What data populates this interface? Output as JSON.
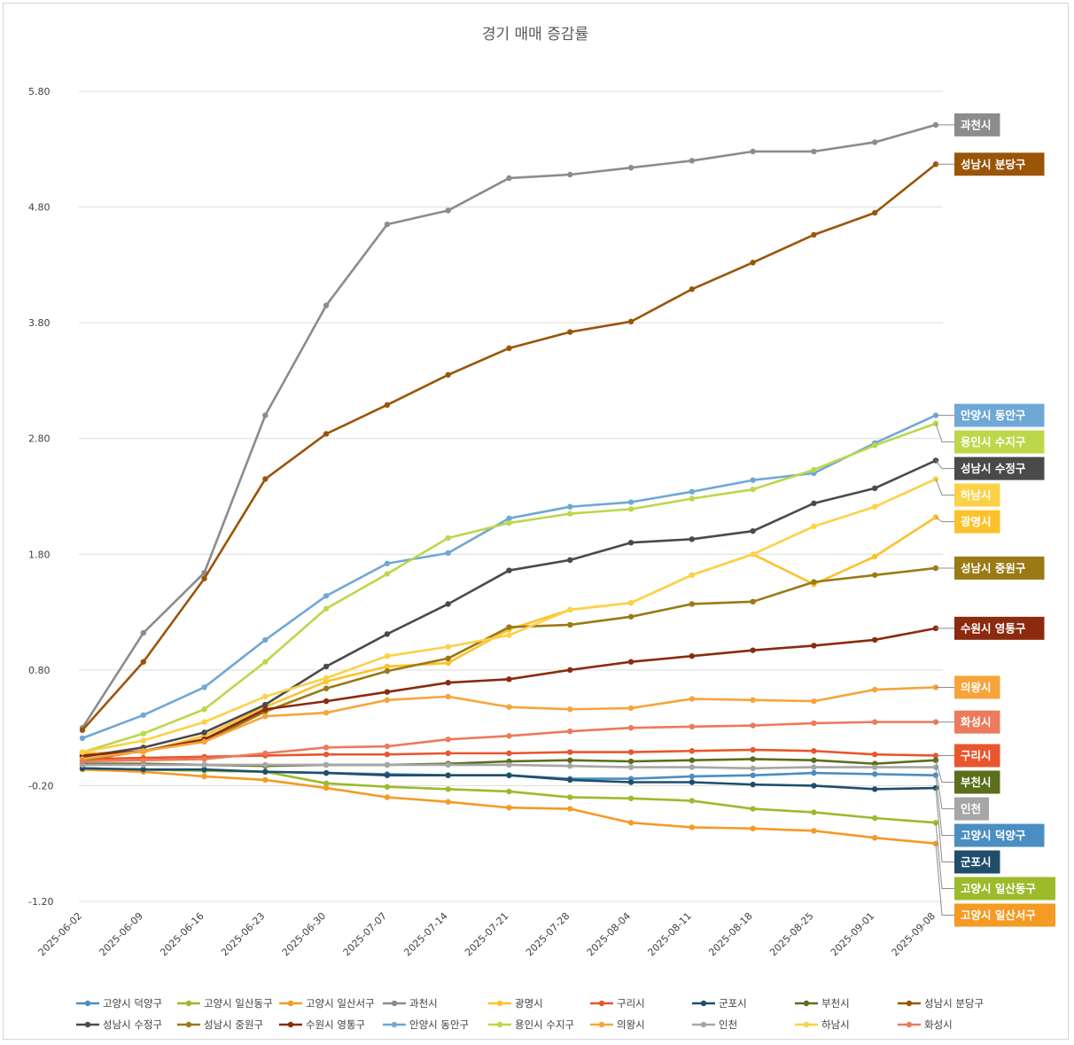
{
  "chart_data": {
    "type": "line",
    "title": "경기 매매 증감률",
    "xlabel": "",
    "ylabel": "",
    "ylim": [
      -1.2,
      5.8
    ],
    "yticks": [
      "5.80",
      "4.80",
      "3.80",
      "2.80",
      "1.80",
      "0.80",
      "-0.20",
      "-1.20"
    ],
    "x": [
      "2025-06-02",
      "2025-06-09",
      "2025-06-16",
      "2025-06-23",
      "2025-06-30",
      "2025-07-07",
      "2025-07-14",
      "2025-07-21",
      "2025-07-28",
      "2025-08-04",
      "2025-08-11",
      "2025-08-18",
      "2025-08-25",
      "2025-09-01",
      "2025-09-08"
    ],
    "grid": true,
    "legend_position": "bottom",
    "series": [
      {
        "name": "고양시 덕양구",
        "color": "#4a8ec2",
        "values": [
          -0.05,
          -0.06,
          -0.07,
          -0.08,
          -0.09,
          -0.1,
          -0.11,
          -0.11,
          -0.14,
          -0.14,
          -0.12,
          -0.11,
          -0.09,
          -0.1,
          -0.11
        ]
      },
      {
        "name": "고양시 일산동구",
        "color": "#9bbb2b",
        "values": [
          -0.05,
          -0.06,
          -0.07,
          -0.08,
          -0.18,
          -0.21,
          -0.23,
          -0.25,
          -0.3,
          -0.31,
          -0.33,
          -0.4,
          -0.43,
          -0.48,
          -0.52
        ]
      },
      {
        "name": "고양시 일산서구",
        "color": "#f59a23",
        "values": [
          -0.06,
          -0.08,
          -0.12,
          -0.15,
          -0.22,
          -0.3,
          -0.34,
          -0.39,
          -0.4,
          -0.52,
          -0.56,
          -0.57,
          -0.59,
          -0.65,
          -0.7
        ]
      },
      {
        "name": "과천시",
        "color": "#8c8c8c",
        "values": [
          0.3,
          1.12,
          1.64,
          3.0,
          3.95,
          4.65,
          4.77,
          5.05,
          5.08,
          5.14,
          5.2,
          5.28,
          5.28,
          5.36,
          5.51
        ]
      },
      {
        "name": "광명시",
        "color": "#fcc22c",
        "values": [
          0.08,
          0.09,
          0.23,
          0.48,
          0.7,
          0.83,
          0.86,
          1.15,
          1.32,
          1.38,
          1.62,
          1.8,
          1.54,
          1.78,
          2.12
        ]
      },
      {
        "name": "구리시",
        "color": "#e8562d",
        "values": [
          0.03,
          0.04,
          0.05,
          0.06,
          0.07,
          0.07,
          0.08,
          0.08,
          0.09,
          0.09,
          0.1,
          0.11,
          0.1,
          0.07,
          0.06
        ]
      },
      {
        "name": "군포시",
        "color": "#1f4e6b",
        "values": [
          -0.05,
          -0.06,
          -0.06,
          -0.08,
          -0.09,
          -0.11,
          -0.11,
          -0.11,
          -0.15,
          -0.17,
          -0.17,
          -0.19,
          -0.2,
          -0.23,
          -0.22
        ]
      },
      {
        "name": "부천시",
        "color": "#5b6e1b",
        "values": [
          -0.01,
          -0.01,
          -0.02,
          -0.03,
          -0.02,
          -0.02,
          -0.01,
          0.01,
          0.02,
          0.01,
          0.02,
          0.03,
          0.02,
          -0.01,
          0.02
        ]
      },
      {
        "name": "성남시 분당구",
        "color": "#9a5508",
        "values": [
          0.28,
          0.87,
          1.59,
          2.45,
          2.84,
          3.09,
          3.35,
          3.58,
          3.72,
          3.81,
          4.09,
          4.32,
          4.56,
          4.75,
          5.17
        ]
      },
      {
        "name": "성남시 수정구",
        "color": "#4a4a4a",
        "values": [
          0.05,
          0.13,
          0.26,
          0.5,
          0.83,
          1.11,
          1.37,
          1.66,
          1.75,
          1.9,
          1.93,
          2.0,
          2.24,
          2.37,
          2.61
        ]
      },
      {
        "name": "성남시 중원구",
        "color": "#9a7a14",
        "values": [
          0.02,
          0.1,
          0.18,
          0.44,
          0.64,
          0.79,
          0.9,
          1.17,
          1.19,
          1.26,
          1.37,
          1.39,
          1.56,
          1.62,
          1.68
        ]
      },
      {
        "name": "수원시 영통구",
        "color": "#8b2a0f",
        "values": [
          0.06,
          0.1,
          0.2,
          0.46,
          0.53,
          0.61,
          0.69,
          0.72,
          0.8,
          0.87,
          0.92,
          0.97,
          1.01,
          1.06,
          1.16
        ]
      },
      {
        "name": "안양시 동안구",
        "color": "#6fa8d6",
        "values": [
          0.21,
          0.41,
          0.65,
          1.06,
          1.44,
          1.72,
          1.81,
          2.11,
          2.21,
          2.25,
          2.34,
          2.44,
          2.5,
          2.76,
          3.0
        ]
      },
      {
        "name": "용인시 수지구",
        "color": "#bcd74a",
        "values": [
          0.09,
          0.25,
          0.46,
          0.87,
          1.33,
          1.63,
          1.94,
          2.07,
          2.15,
          2.19,
          2.28,
          2.36,
          2.53,
          2.74,
          2.93
        ]
      },
      {
        "name": "의왕시",
        "color": "#f7a43a",
        "values": [
          0.03,
          0.1,
          0.18,
          0.4,
          0.43,
          0.54,
          0.57,
          0.48,
          0.46,
          0.47,
          0.55,
          0.54,
          0.53,
          0.63,
          0.65
        ]
      },
      {
        "name": "인천",
        "color": "#a6a6a6",
        "values": [
          -0.02,
          -0.02,
          -0.02,
          -0.02,
          -0.02,
          -0.02,
          -0.02,
          -0.02,
          -0.03,
          -0.04,
          -0.04,
          -0.05,
          -0.04,
          -0.04,
          -0.04
        ]
      },
      {
        "name": "하남시",
        "color": "#fcd146",
        "values": [
          0.09,
          0.19,
          0.35,
          0.57,
          0.73,
          0.92,
          1.0,
          1.1,
          1.32,
          1.38,
          1.62,
          1.8,
          2.04,
          2.21,
          2.45
        ]
      },
      {
        "name": "화성시",
        "color": "#ec7a5c",
        "values": [
          0.01,
          0.02,
          0.03,
          0.08,
          0.13,
          0.14,
          0.2,
          0.23,
          0.27,
          0.3,
          0.31,
          0.32,
          0.34,
          0.35,
          0.35
        ]
      }
    ],
    "end_labels": [
      {
        "series": "과천시"
      },
      {
        "series": "성남시 분당구"
      },
      {
        "series": "안양시 동안구"
      },
      {
        "series": "용인시 수지구"
      },
      {
        "series": "성남시 수정구"
      },
      {
        "series": "하남시"
      },
      {
        "series": "광명시"
      },
      {
        "series": "성남시 중원구"
      },
      {
        "series": "수원시 영통구"
      },
      {
        "series": "의왕시"
      },
      {
        "series": "화성시"
      },
      {
        "series": "구리시"
      },
      {
        "series": "부천시"
      },
      {
        "series": "인천"
      },
      {
        "series": "고양시 덕양구"
      },
      {
        "series": "군포시"
      },
      {
        "series": "고양시 일산동구"
      },
      {
        "series": "고양시 일산서구"
      }
    ]
  }
}
